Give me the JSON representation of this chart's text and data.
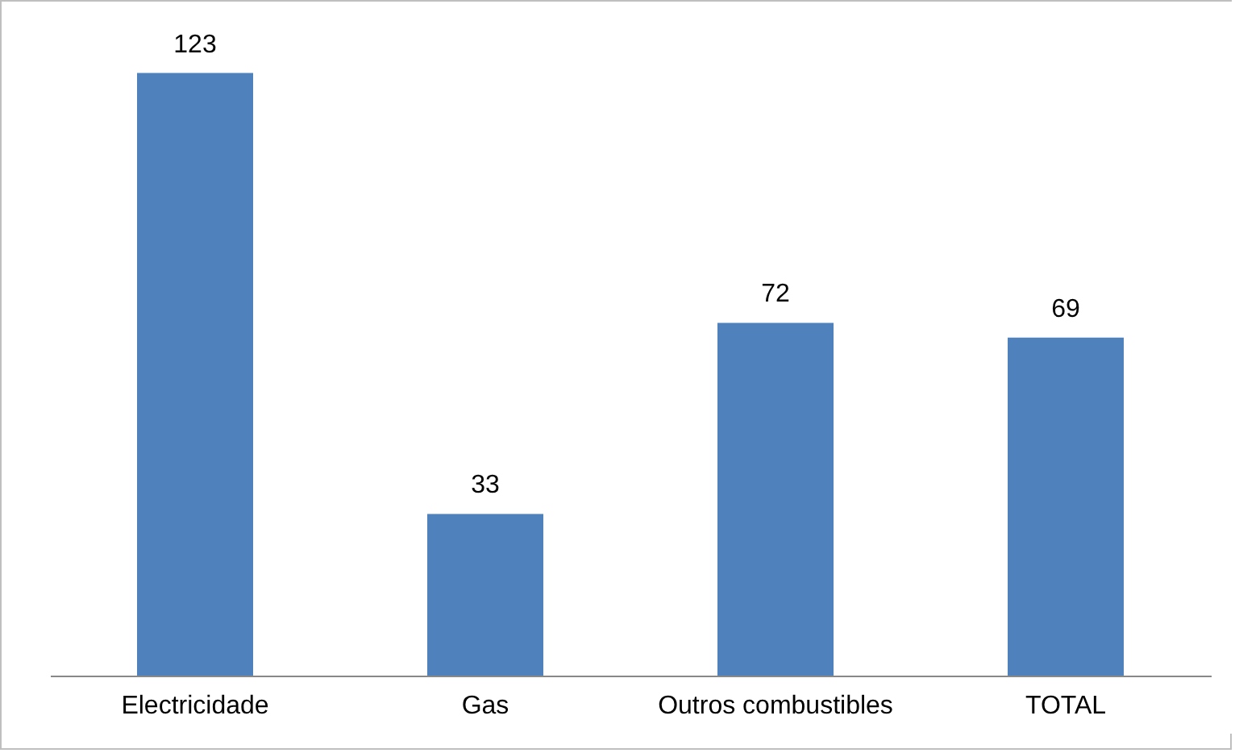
{
  "chart_data": {
    "type": "bar",
    "categories": [
      "Electricidade",
      "Gas",
      "Outros combustibles",
      "TOTAL"
    ],
    "values": [
      123,
      33,
      72,
      69
    ],
    "color": "#4f81bd",
    "data_labels": true
  }
}
